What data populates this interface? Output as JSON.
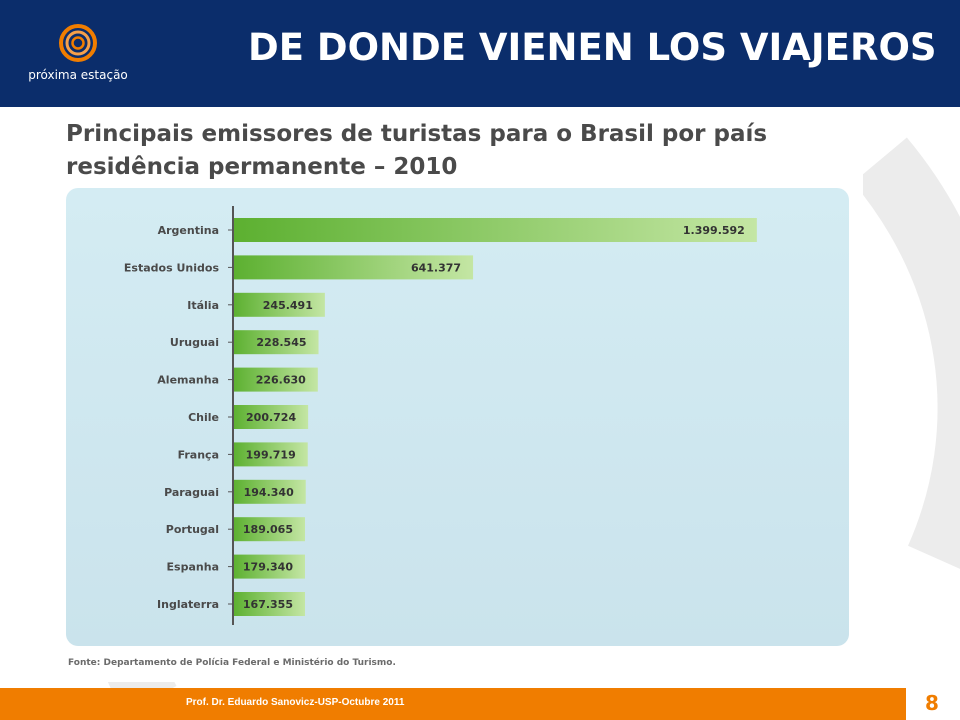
{
  "slide": {
    "title": "DE DONDE VIENEN LOS VIAJEROS",
    "logo_text": "próxima estação",
    "footer_text": "Prof. Dr. Eduardo Sanovicz-USP-Octubre 2011",
    "page_number": "8"
  },
  "colors": {
    "header": "#0b2d6b",
    "footer": "#f07d00",
    "bar_start": "#5cb030",
    "bar_end": "#c4e6a4",
    "panel": "#cfe8f0"
  },
  "chart_data": {
    "type": "bar",
    "orientation": "horizontal",
    "title": "Principais emissores de turistas para o Brasil por país residência permanente – 2010",
    "categories": [
      "Argentina",
      "Estados Unidos",
      "Itália",
      "Uruguai",
      "Alemanha",
      "Chile",
      "França",
      "Paraguai",
      "Portugal",
      "Espanha",
      "Inglaterra"
    ],
    "values": [
      1399592,
      641377,
      245491,
      228545,
      226630,
      200724,
      199719,
      194340,
      189065,
      179340,
      167355
    ],
    "value_labels": [
      "1.399.592",
      "641.377",
      "245.491",
      "228.545",
      "226.630",
      "200.724",
      "199.719",
      "194.340",
      "189.065",
      "179.340",
      "167.355"
    ],
    "xlim": [
      0,
      1400000
    ],
    "source": "Fonte: Departamento de Polícia Federal e Ministério do Turismo."
  }
}
